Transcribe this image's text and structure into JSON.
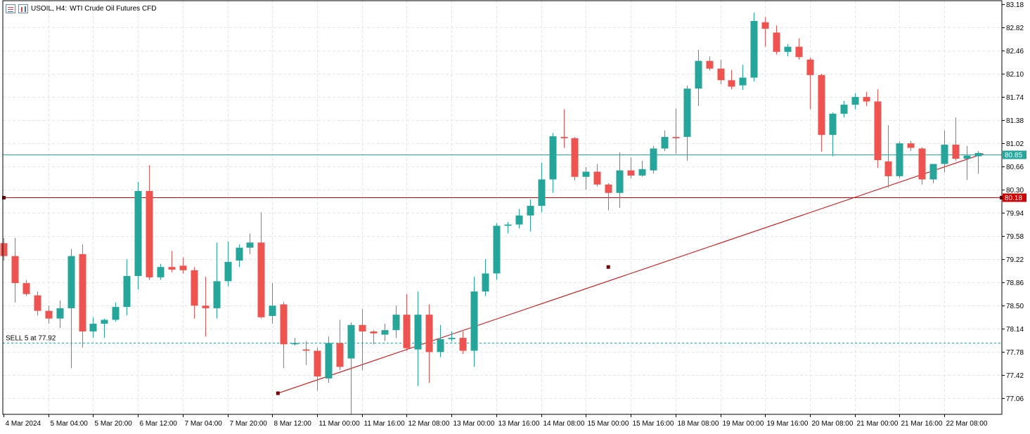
{
  "header": {
    "symbol": "USOIL, H4:",
    "description": "WTI Crude Oil Futures CFD",
    "menu_icon": "list-icon",
    "chart_icon": "bar-chart-icon"
  },
  "colors": {
    "bull": "#26a69a",
    "bear": "#ef5350",
    "grid": "#e6e6e6",
    "trendline": "#cc0000",
    "bid_line": "#26a69a",
    "level_line": "#cc0000",
    "order_line": "#26a69a"
  },
  "chart_data": {
    "type": "candlestick",
    "symbol": "USOIL",
    "timeframe": "H4",
    "ylim": [
      76.78,
      83.18
    ],
    "y_ticks": [
      83.18,
      82.82,
      82.46,
      82.1,
      81.74,
      81.38,
      81.02,
      80.66,
      80.3,
      79.94,
      79.58,
      79.22,
      78.86,
      78.5,
      78.14,
      77.78,
      77.42,
      77.06
    ],
    "x_ticks": [
      {
        "bar": 0,
        "label": "4 Mar 2024"
      },
      {
        "bar": 4,
        "label": "5 Mar 04:00"
      },
      {
        "bar": 8,
        "label": "5 Mar 20:00"
      },
      {
        "bar": 12,
        "label": "6 Mar 12:00"
      },
      {
        "bar": 16,
        "label": "7 Mar 04:00"
      },
      {
        "bar": 20,
        "label": "7 Mar 20:00"
      },
      {
        "bar": 24,
        "label": "8 Mar 12:00"
      },
      {
        "bar": 28,
        "label": "11 Mar 00:00"
      },
      {
        "bar": 32,
        "label": "11 Mar 16:00"
      },
      {
        "bar": 36,
        "label": "12 Mar 08:00"
      },
      {
        "bar": 40,
        "label": "13 Mar 00:00"
      },
      {
        "bar": 44,
        "label": "13 Mar 16:00"
      },
      {
        "bar": 48,
        "label": "14 Mar 08:00"
      },
      {
        "bar": 52,
        "label": "15 Mar 00:00"
      },
      {
        "bar": 56,
        "label": "15 Mar 16:00"
      },
      {
        "bar": 60,
        "label": "18 Mar 08:00"
      },
      {
        "bar": 64,
        "label": "19 Mar 00:00"
      },
      {
        "bar": 68,
        "label": "19 Mar 16:00"
      },
      {
        "bar": 72,
        "label": "20 Mar 08:00"
      },
      {
        "bar": 76,
        "label": "21 Mar 00:00"
      },
      {
        "bar": 80,
        "label": "21 Mar 16:00"
      },
      {
        "bar": 84,
        "label": "22 Mar 08:00"
      }
    ],
    "candles": [
      {
        "o": 79.47,
        "h": 79.55,
        "l": 79.2,
        "c": 79.27
      },
      {
        "o": 79.27,
        "h": 79.55,
        "l": 78.55,
        "c": 78.85
      },
      {
        "o": 78.85,
        "h": 78.9,
        "l": 78.65,
        "c": 78.68
      },
      {
        "o": 78.66,
        "h": 78.72,
        "l": 78.35,
        "c": 78.42
      },
      {
        "o": 78.42,
        "h": 78.5,
        "l": 78.22,
        "c": 78.3
      },
      {
        "o": 78.3,
        "h": 78.58,
        "l": 78.15,
        "c": 78.46
      },
      {
        "o": 78.46,
        "h": 79.38,
        "l": 77.53,
        "c": 79.27
      },
      {
        "o": 79.3,
        "h": 79.45,
        "l": 77.85,
        "c": 78.1
      },
      {
        "o": 78.1,
        "h": 78.32,
        "l": 78.0,
        "c": 78.22
      },
      {
        "o": 78.22,
        "h": 78.3,
        "l": 78.0,
        "c": 78.28
      },
      {
        "o": 78.28,
        "h": 78.55,
        "l": 78.25,
        "c": 78.48
      },
      {
        "o": 78.48,
        "h": 79.22,
        "l": 78.35,
        "c": 78.96
      },
      {
        "o": 78.96,
        "h": 80.42,
        "l": 78.75,
        "c": 80.28
      },
      {
        "o": 80.28,
        "h": 80.68,
        "l": 78.9,
        "c": 78.94
      },
      {
        "o": 78.94,
        "h": 79.15,
        "l": 78.9,
        "c": 79.1
      },
      {
        "o": 79.1,
        "h": 79.35,
        "l": 79.02,
        "c": 79.06
      },
      {
        "o": 79.12,
        "h": 79.25,
        "l": 79.0,
        "c": 79.05
      },
      {
        "o": 79.05,
        "h": 79.1,
        "l": 78.3,
        "c": 78.5
      },
      {
        "o": 78.5,
        "h": 78.95,
        "l": 78.02,
        "c": 78.46
      },
      {
        "o": 78.46,
        "h": 79.48,
        "l": 78.3,
        "c": 78.88
      },
      {
        "o": 78.88,
        "h": 79.5,
        "l": 78.8,
        "c": 79.18
      },
      {
        "o": 79.2,
        "h": 79.45,
        "l": 79.1,
        "c": 79.4
      },
      {
        "o": 79.4,
        "h": 79.62,
        "l": 79.3,
        "c": 79.48
      },
      {
        "o": 79.48,
        "h": 79.95,
        "l": 78.3,
        "c": 78.32
      },
      {
        "o": 78.34,
        "h": 78.85,
        "l": 78.22,
        "c": 78.5
      },
      {
        "o": 78.52,
        "h": 78.56,
        "l": 77.53,
        "c": 77.9
      },
      {
        "o": 77.9,
        "h": 78.0,
        "l": 77.88,
        "c": 77.92
      },
      {
        "o": 77.82,
        "h": 77.95,
        "l": 77.58,
        "c": 77.8
      },
      {
        "o": 77.8,
        "h": 77.85,
        "l": 77.18,
        "c": 77.4
      },
      {
        "o": 77.37,
        "h": 78.02,
        "l": 77.3,
        "c": 77.92
      },
      {
        "o": 77.92,
        "h": 78.28,
        "l": 77.5,
        "c": 77.55
      },
      {
        "o": 77.68,
        "h": 78.24,
        "l": 76.82,
        "c": 78.2
      },
      {
        "o": 78.2,
        "h": 78.45,
        "l": 77.5,
        "c": 78.1
      },
      {
        "o": 78.1,
        "h": 78.12,
        "l": 77.9,
        "c": 78.07
      },
      {
        "o": 78.05,
        "h": 78.22,
        "l": 77.95,
        "c": 78.12
      },
      {
        "o": 78.12,
        "h": 78.5,
        "l": 78.0,
        "c": 78.36
      },
      {
        "o": 78.36,
        "h": 78.68,
        "l": 77.8,
        "c": 77.84
      },
      {
        "o": 77.82,
        "h": 78.72,
        "l": 77.25,
        "c": 78.36
      },
      {
        "o": 78.36,
        "h": 78.52,
        "l": 77.3,
        "c": 77.78
      },
      {
        "o": 77.78,
        "h": 78.2,
        "l": 77.7,
        "c": 77.98
      },
      {
        "o": 77.98,
        "h": 78.1,
        "l": 77.94,
        "c": 78.0
      },
      {
        "o": 78.0,
        "h": 78.1,
        "l": 77.75,
        "c": 77.8
      },
      {
        "o": 77.8,
        "h": 78.95,
        "l": 77.55,
        "c": 78.72
      },
      {
        "o": 78.72,
        "h": 79.22,
        "l": 78.65,
        "c": 79.0
      },
      {
        "o": 79.0,
        "h": 79.78,
        "l": 78.9,
        "c": 79.74
      },
      {
        "o": 79.74,
        "h": 79.8,
        "l": 79.62,
        "c": 79.76
      },
      {
        "o": 79.76,
        "h": 80.0,
        "l": 79.7,
        "c": 79.9
      },
      {
        "o": 79.9,
        "h": 80.15,
        "l": 79.65,
        "c": 80.05
      },
      {
        "o": 80.05,
        "h": 80.72,
        "l": 79.95,
        "c": 80.46
      },
      {
        "o": 80.46,
        "h": 81.18,
        "l": 80.25,
        "c": 81.13
      },
      {
        "o": 81.12,
        "h": 81.55,
        "l": 80.95,
        "c": 81.1
      },
      {
        "o": 81.1,
        "h": 81.12,
        "l": 80.44,
        "c": 80.5
      },
      {
        "o": 80.5,
        "h": 80.65,
        "l": 80.3,
        "c": 80.58
      },
      {
        "o": 80.58,
        "h": 80.7,
        "l": 80.35,
        "c": 80.38
      },
      {
        "o": 80.38,
        "h": 80.4,
        "l": 79.98,
        "c": 80.25
      },
      {
        "o": 80.25,
        "h": 80.88,
        "l": 80.02,
        "c": 80.6
      },
      {
        "o": 80.6,
        "h": 80.8,
        "l": 80.48,
        "c": 80.52
      },
      {
        "o": 80.52,
        "h": 80.75,
        "l": 80.5,
        "c": 80.62
      },
      {
        "o": 80.6,
        "h": 80.98,
        "l": 80.55,
        "c": 80.94
      },
      {
        "o": 80.94,
        "h": 81.22,
        "l": 80.9,
        "c": 81.12
      },
      {
        "o": 81.12,
        "h": 81.56,
        "l": 80.86,
        "c": 81.1
      },
      {
        "o": 81.12,
        "h": 81.92,
        "l": 80.75,
        "c": 81.87
      },
      {
        "o": 81.87,
        "h": 82.47,
        "l": 81.6,
        "c": 82.3
      },
      {
        "o": 82.3,
        "h": 82.37,
        "l": 82.15,
        "c": 82.18
      },
      {
        "o": 82.18,
        "h": 82.32,
        "l": 81.94,
        "c": 82.0
      },
      {
        "o": 82.0,
        "h": 82.16,
        "l": 81.86,
        "c": 81.9
      },
      {
        "o": 81.92,
        "h": 82.24,
        "l": 81.85,
        "c": 82.04
      },
      {
        "o": 82.04,
        "h": 83.05,
        "l": 81.98,
        "c": 82.92
      },
      {
        "o": 82.9,
        "h": 82.98,
        "l": 82.52,
        "c": 82.8
      },
      {
        "o": 82.74,
        "h": 82.85,
        "l": 82.4,
        "c": 82.44
      },
      {
        "o": 82.44,
        "h": 82.56,
        "l": 82.37,
        "c": 82.52
      },
      {
        "o": 82.52,
        "h": 82.65,
        "l": 82.32,
        "c": 82.36
      },
      {
        "o": 82.32,
        "h": 82.35,
        "l": 81.55,
        "c": 82.08
      },
      {
        "o": 82.08,
        "h": 82.1,
        "l": 80.89,
        "c": 81.15
      },
      {
        "o": 81.15,
        "h": 81.5,
        "l": 80.82,
        "c": 81.48
      },
      {
        "o": 81.48,
        "h": 81.68,
        "l": 81.42,
        "c": 81.62
      },
      {
        "o": 81.62,
        "h": 81.8,
        "l": 81.55,
        "c": 81.74
      },
      {
        "o": 81.74,
        "h": 81.82,
        "l": 81.6,
        "c": 81.67
      },
      {
        "o": 81.67,
        "h": 81.86,
        "l": 80.64,
        "c": 80.76
      },
      {
        "o": 80.74,
        "h": 81.3,
        "l": 80.33,
        "c": 80.51
      },
      {
        "o": 80.51,
        "h": 81.05,
        "l": 80.48,
        "c": 81.02
      },
      {
        "o": 81.02,
        "h": 81.06,
        "l": 80.9,
        "c": 80.95
      },
      {
        "o": 80.94,
        "h": 80.96,
        "l": 80.38,
        "c": 80.46
      },
      {
        "o": 80.46,
        "h": 80.7,
        "l": 80.4,
        "c": 80.7
      },
      {
        "o": 80.7,
        "h": 81.22,
        "l": 80.57,
        "c": 81.0
      },
      {
        "o": 81.0,
        "h": 81.42,
        "l": 80.75,
        "c": 80.78
      },
      {
        "o": 80.78,
        "h": 80.98,
        "l": 80.45,
        "c": 80.83
      },
      {
        "o": 80.82,
        "h": 80.9,
        "l": 80.55,
        "c": 80.87
      }
    ],
    "horizontal_lines": [
      {
        "price": 80.85,
        "label": "80.85",
        "kind": "bid"
      },
      {
        "price": 80.18,
        "label": "80.18",
        "kind": "level"
      },
      {
        "price": 77.92,
        "label": "SELL 5 at 77.92",
        "kind": "order"
      }
    ],
    "trendline": {
      "points": [
        {
          "bar": 24.5,
          "price": 77.14
        },
        {
          "bar": 54.0,
          "price": 79.1
        },
        {
          "bar": 87.5,
          "price": 80.86
        }
      ]
    },
    "grid": true
  }
}
